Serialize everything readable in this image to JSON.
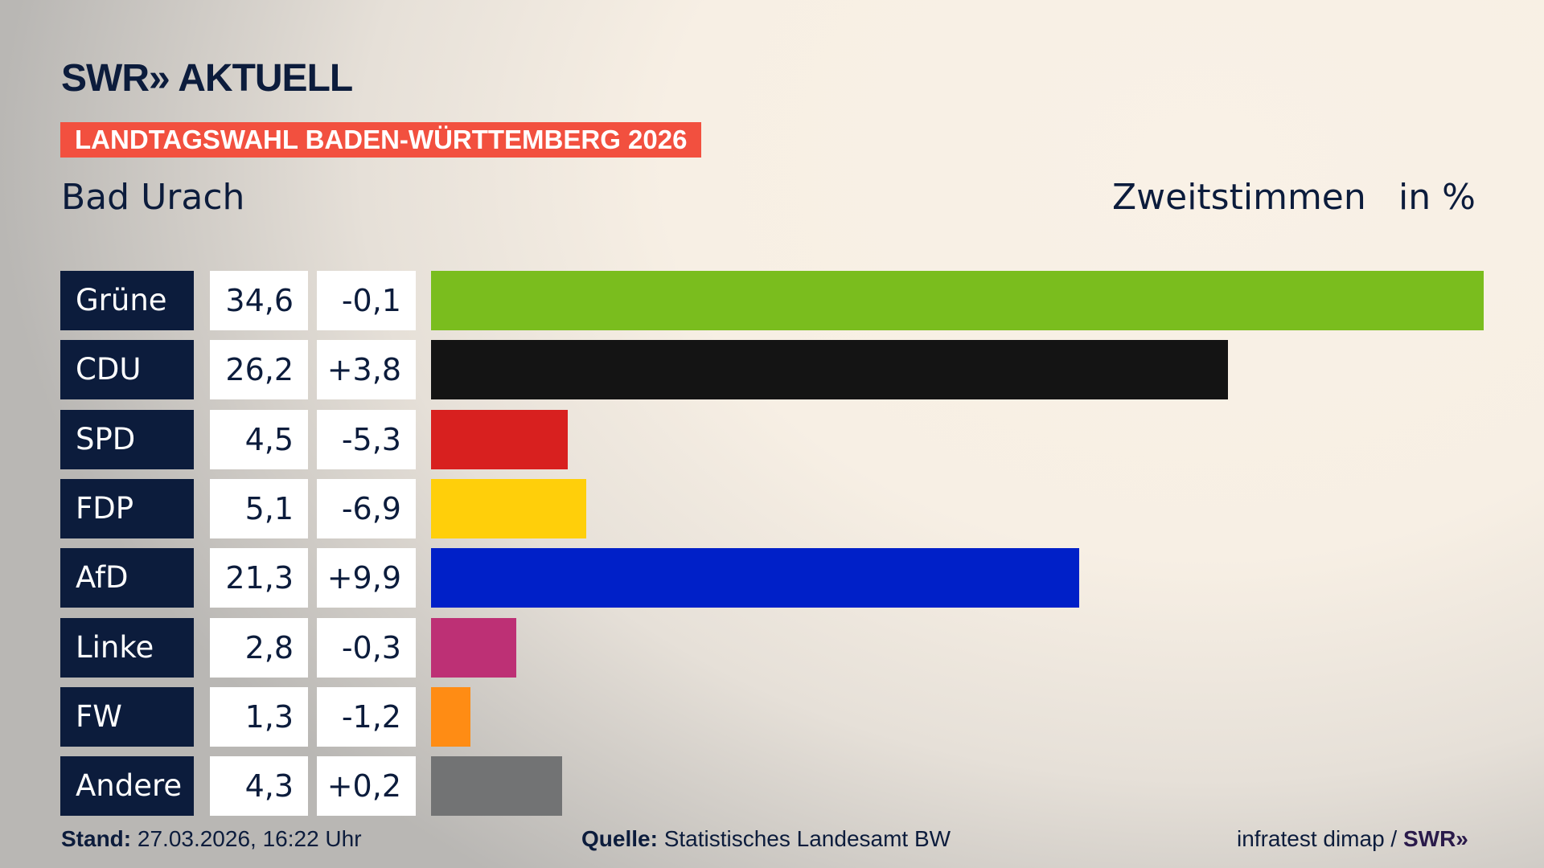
{
  "logo": "SWR» AKTUELL",
  "banner": "LANDTAGSWAHL BADEN-WÜRTTEMBERG 2026",
  "region": "Bad Urach",
  "vote_type": "Zweitstimmen",
  "unit": "in %",
  "chart_data": {
    "type": "bar",
    "orientation": "horizontal",
    "categories": [
      "Grüne",
      "CDU",
      "SPD",
      "FDP",
      "AfD",
      "Linke",
      "FW",
      "Andere"
    ],
    "values": [
      34.6,
      26.2,
      4.5,
      5.1,
      21.3,
      2.8,
      1.3,
      4.3
    ],
    "labels": [
      "34,6",
      "26,2",
      "4,5",
      "5,1",
      "21,3",
      "2,8",
      "1,3",
      "4,3"
    ],
    "changes": [
      "-0,1",
      "+3,8",
      "-5,3",
      "-6,9",
      "+9,9",
      "-0,3",
      "-1,2",
      "+0,2"
    ],
    "colors": [
      "#7abd1e",
      "#141414",
      "#d8201f",
      "#ffcf0a",
      "#0020c8",
      "#bd3075",
      "#ff8c14",
      "#727374"
    ],
    "title": "Zweitstimmen",
    "ylabel": "in %"
  },
  "footer": {
    "stand_label": "Stand:",
    "stand": "27.03.2026, 16:22 Uhr",
    "quelle_label": "Quelle:",
    "quelle": "Statistisches Landesamt BW",
    "credit": "infratest dimap /",
    "credit_logo": "SWR»"
  }
}
